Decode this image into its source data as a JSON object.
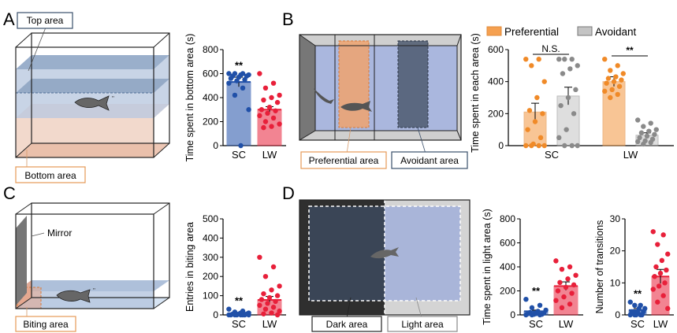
{
  "panels": {
    "A": {
      "letter": "A",
      "labels": {
        "top": "Top area",
        "bottom": "Bottom area"
      },
      "chart_data": {
        "type": "bar",
        "categories": [
          "SC",
          "LW"
        ],
        "values": [
          530,
          300
        ],
        "errors": [
          40,
          25
        ],
        "ylabel": "Time spent in bottom area (s)",
        "ylim": [
          0,
          800
        ],
        "yticks": [
          0,
          200,
          400,
          600,
          800
        ],
        "significance": [
          "**",
          ""
        ],
        "colors": [
          "#2050a8",
          "#e8203a"
        ],
        "points": [
          [
            600,
            600,
            600,
            590,
            590,
            580,
            580,
            570,
            560,
            550,
            540,
            520,
            480,
            420,
            300,
            0
          ],
          [
            600,
            520,
            480,
            420,
            400,
            380,
            360,
            320,
            300,
            290,
            270,
            250,
            230,
            200,
            180,
            160,
            150
          ]
        ]
      }
    },
    "B": {
      "letter": "B",
      "labels": {
        "preferential": "Preferential area",
        "avoidant": "Avoidant area"
      },
      "chart_data": {
        "type": "bar",
        "categories": [
          "SC",
          "LW"
        ],
        "series": [
          {
            "name": "Preferential",
            "color": "#f5a050",
            "values": [
              210,
              400
            ],
            "errors": [
              55,
              30
            ],
            "points": [
              [
                540,
                540,
                500,
                400,
                300,
                220,
                200,
                150,
                100,
                50,
                10,
                0,
                0,
                0,
                0
              ],
              [
                540,
                500,
                470,
                450,
                430,
                420,
                410,
                400,
                390,
                370,
                350,
                340,
                320,
                300
              ]
            ]
          },
          {
            "name": "Avoidant",
            "color": "#c4c4c4",
            "values": [
              310,
              65
            ],
            "errors": [
              55,
              15
            ],
            "points": [
              [
                540,
                540,
                540,
                500,
                480,
                450,
                350,
                300,
                250,
                200,
                100,
                50,
                0,
                0,
                0
              ],
              [
                160,
                140,
                120,
                100,
                90,
                80,
                70,
                60,
                50,
                40,
                30,
                25,
                20,
                10
              ]
            ]
          }
        ],
        "legend": [
          "Preferential",
          "Avoidant"
        ],
        "legend_position": "top",
        "ylabel": "Time spent in each area (s)",
        "ylim": [
          0,
          600
        ],
        "yticks": [
          0,
          200,
          400,
          600
        ],
        "annotations": [
          "N.S.",
          "**"
        ]
      }
    },
    "C": {
      "letter": "C",
      "labels": {
        "mirror": "Mirror",
        "biting": "Biting area"
      },
      "chart_data": {
        "type": "bar",
        "categories": [
          "SC",
          "LW"
        ],
        "values": [
          5,
          78
        ],
        "errors": [
          2,
          18
        ],
        "ylabel": "Entries in biting area",
        "ylim": [
          0,
          500
        ],
        "yticks": [
          0,
          100,
          200,
          300,
          400,
          500
        ],
        "significance": [
          "**",
          ""
        ],
        "colors": [
          "#2050a8",
          "#e8203a"
        ],
        "points": [
          [
            30,
            20,
            15,
            10,
            10,
            5,
            5,
            5,
            0,
            0,
            0,
            0,
            0,
            0,
            0,
            0
          ],
          [
            300,
            250,
            200,
            150,
            130,
            110,
            100,
            90,
            80,
            70,
            60,
            50,
            40,
            30,
            20,
            10,
            5,
            0
          ]
        ]
      }
    },
    "D": {
      "letter": "D",
      "labels": {
        "dark": "Dark area",
        "light": "Light area"
      },
      "chart_data": [
        {
          "type": "bar",
          "categories": [
            "SC",
            "LW"
          ],
          "values": [
            30,
            240
          ],
          "errors": [
            10,
            35
          ],
          "ylabel": "Time spent in light area (s)",
          "ylim": [
            0,
            800
          ],
          "yticks": [
            0,
            200,
            400,
            600,
            800
          ],
          "significance": [
            "**",
            ""
          ],
          "colors": [
            "#2050a8",
            "#e8203a"
          ],
          "points": [
            [
              130,
              80,
              60,
              40,
              30,
              20,
              15,
              10,
              10,
              5,
              5,
              0,
              0,
              0
            ],
            [
              450,
              400,
              380,
              330,
              300,
              270,
              250,
              230,
              200,
              180,
              150,
              120,
              90,
              60
            ]
          ]
        },
        {
          "type": "bar",
          "categories": [
            "SC",
            "LW"
          ],
          "values": [
            1.5,
            12
          ],
          "errors": [
            0.5,
            2.2
          ],
          "ylabel": "Number of transitions",
          "ylim": [
            0,
            30
          ],
          "yticks": [
            0,
            10,
            20,
            30
          ],
          "significance": [
            "**",
            ""
          ],
          "colors": [
            "#2050a8",
            "#e8203a"
          ],
          "points": [
            [
              4,
              3,
              3,
              2,
              2,
              1,
              1,
              1,
              1,
              0,
              0,
              0,
              0,
              0
            ],
            [
              26,
              25,
              22,
              19,
              17,
              15,
              14,
              13,
              12,
              10,
              9,
              8,
              6,
              4,
              2
            ]
          ]
        }
      ]
    }
  }
}
